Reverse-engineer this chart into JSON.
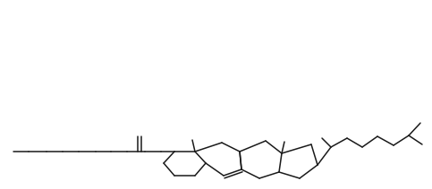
{
  "background": "#ffffff",
  "line_color": "#1a1a1a",
  "line_width": 1.1,
  "figsize": [
    4.83,
    2.12
  ],
  "dpi": 100
}
